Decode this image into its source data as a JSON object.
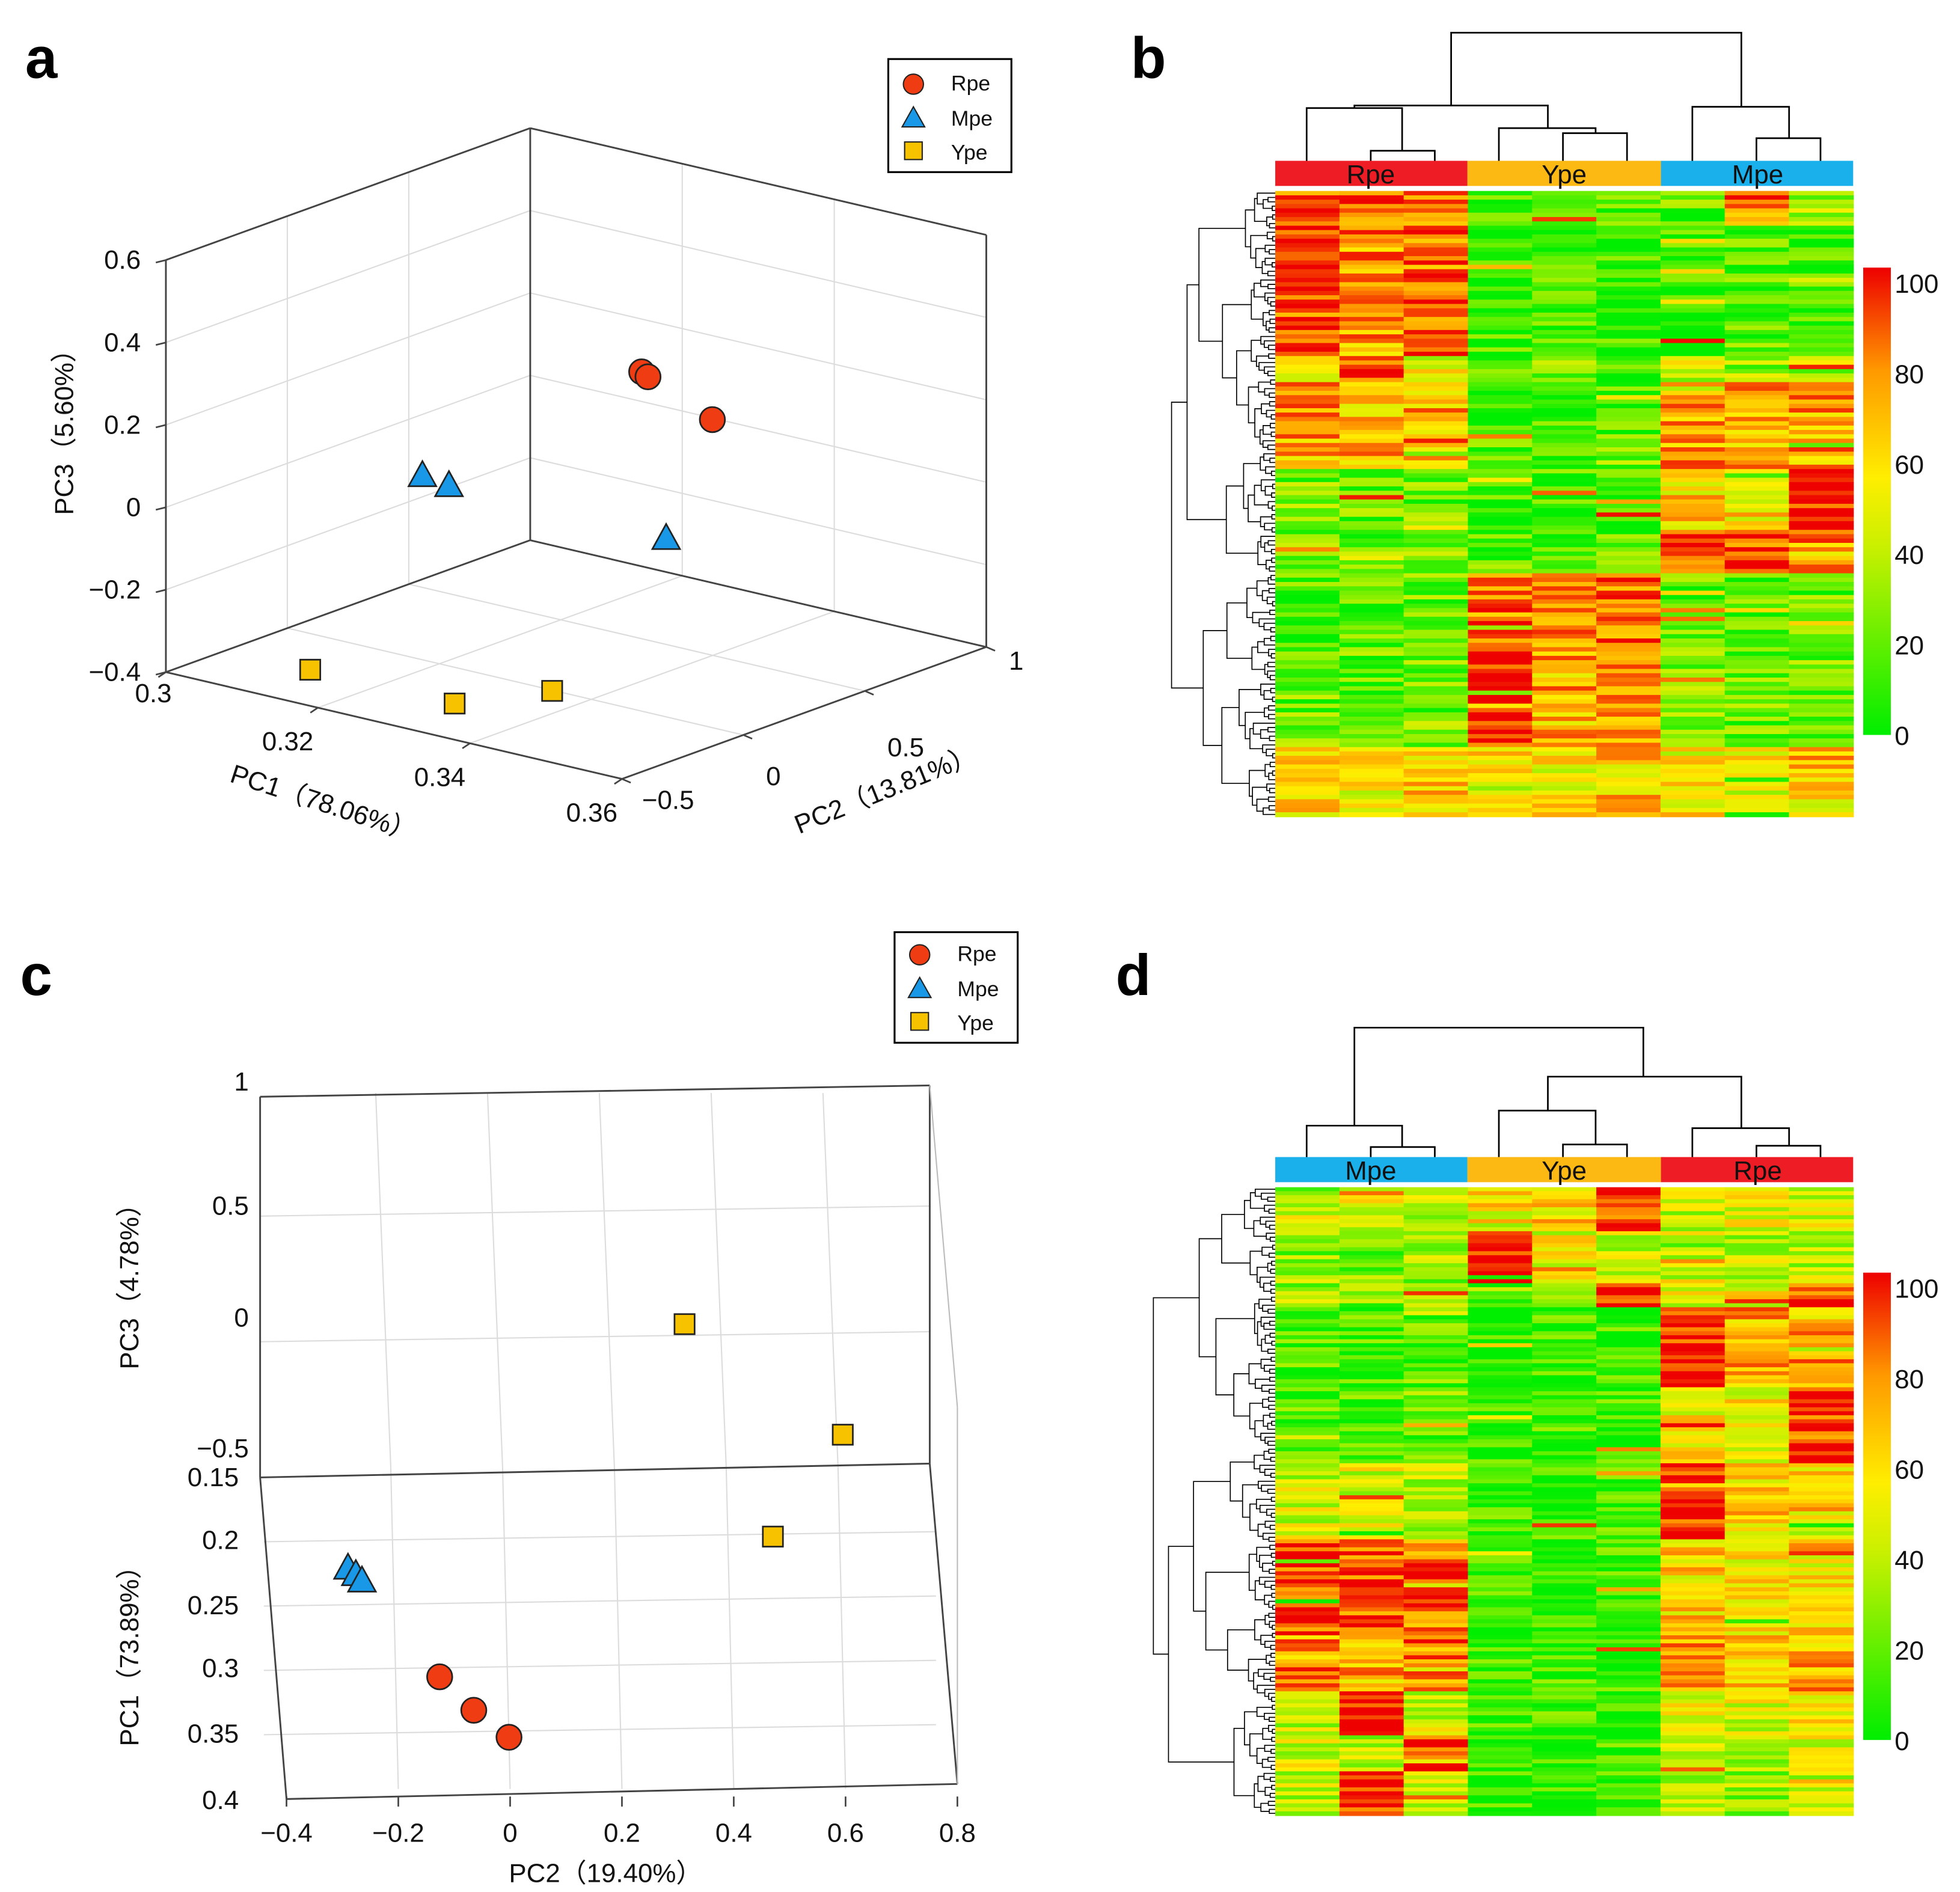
{
  "colors": {
    "Rpe": "#f03c12",
    "Mpe": "#1a98e8",
    "Ype": "#f7c200",
    "bar_Rpe": "#ee1c25",
    "bar_Ype": "#fdb913",
    "bar_Mpe": "#1ab0ec"
  },
  "legend": [
    "Rpe",
    "Mpe",
    "Ype"
  ],
  "chart_data": [
    {
      "panel": "a",
      "type": "scatter",
      "subtype": "3d",
      "xlabel": "PC1（78.06%）",
      "ylabel": "PC2（13.81%）",
      "zlabel": "PC3（5.60%）",
      "xlim": [
        0.3,
        0.36
      ],
      "ylim": [
        -0.5,
        1
      ],
      "zlim": [
        -0.4,
        0.6
      ],
      "xticks": [
        "0.3",
        "0.32",
        "0.34",
        "0.36"
      ],
      "yticks": [
        "−0.5",
        "0",
        "0.5",
        "1"
      ],
      "zticks": [
        "−0.4",
        "−0.2",
        "0",
        "0.2",
        "0.4",
        "0.6"
      ],
      "legend_position": "top-right",
      "series": [
        {
          "name": "Rpe",
          "marker": "circle",
          "points": [
            [
              0.3354,
              0.351,
              0.3
            ],
            [
              0.337,
              0.327,
              0.3
            ],
            [
              0.3425,
              0.42,
              0.2
            ]
          ]
        },
        {
          "name": "Mpe",
          "marker": "triangle",
          "points": [
            [
              0.3179,
              -0.004,
              0.05
            ],
            [
              0.3204,
              0.027,
              0.03
            ],
            [
              0.3376,
              0.383,
              -0.1
            ]
          ]
        },
        {
          "name": "Ype",
          "marker": "square",
          "points": [
            [
              0.311,
              -0.25,
              -0.4
            ],
            [
              0.33,
              -0.25,
              -0.4
            ],
            [
              0.335,
              -0.005,
              -0.4
            ]
          ]
        }
      ]
    },
    {
      "panel": "b",
      "type": "heatmap",
      "groups": [
        "Rpe",
        "Ype",
        "Mpe"
      ],
      "colorbar": {
        "range": [
          0,
          100
        ],
        "ticks": [
          "100",
          "80",
          "60",
          "40",
          "20",
          "0"
        ]
      },
      "row_blocks": [
        {
          "rows": 8,
          "values": [
            90,
            80,
            85,
            12,
            10,
            15,
            20,
            85,
            30
          ]
        },
        {
          "rows": 30,
          "values": [
            88,
            75,
            85,
            10,
            12,
            10,
            10,
            15,
            12
          ]
        },
        {
          "rows": 6,
          "values": [
            45,
            85,
            50,
            20,
            25,
            20,
            40,
            30,
            35
          ]
        },
        {
          "rows": 20,
          "values": [
            72,
            68,
            70,
            15,
            12,
            18,
            75,
            70,
            72
          ]
        },
        {
          "rows": 14,
          "values": [
            25,
            18,
            20,
            12,
            12,
            15,
            60,
            60,
            95
          ]
        },
        {
          "rows": 10,
          "values": [
            20,
            22,
            25,
            15,
            15,
            15,
            88,
            92,
            75
          ]
        },
        {
          "rows": 18,
          "values": [
            15,
            18,
            20,
            85,
            75,
            85,
            20,
            15,
            20
          ]
        },
        {
          "rows": 22,
          "values": [
            20,
            18,
            22,
            100,
            70,
            80,
            25,
            20,
            25
          ]
        },
        {
          "rows": 16,
          "values": [
            65,
            55,
            60,
            60,
            55,
            65,
            55,
            50,
            60
          ]
        }
      ]
    },
    {
      "panel": "c",
      "type": "scatter",
      "subtype": "3d-projection",
      "xlabel": "PC2（19.40%）",
      "ylabel_upper": "PC3（4.78%）",
      "ylabel_lower": "PC1（73.89%）",
      "xlim": [
        -0.4,
        0.8
      ],
      "ylim_upper": [
        -0.5,
        1
      ],
      "ylim_lower": [
        0.15,
        0.4
      ],
      "xticks": [
        "−0.4",
        "−0.2",
        "0",
        "0.2",
        "0.4",
        "0.6",
        "0.8"
      ],
      "yticks_upper": [
        "1",
        "0.5",
        "0",
        "−0.5"
      ],
      "yticks_lower": [
        "0.15",
        "0.2",
        "0.25",
        "0.3",
        "0.35",
        "0.4"
      ],
      "legend_position": "top-right",
      "series": [
        {
          "name": "Rpe",
          "marker": "circle",
          "panel": "lower",
          "points": [
            [
              -0.126,
              0.305
            ],
            [
              -0.065,
              0.331
            ],
            [
              -0.002,
              0.352
            ]
          ]
        },
        {
          "name": "Mpe",
          "marker": "triangle",
          "panel": "lower",
          "points": [
            [
              -0.29,
              0.22
            ],
            [
              -0.276,
              0.225
            ],
            [
              -0.265,
              0.23
            ]
          ]
        },
        {
          "name": "Ype",
          "marker": "square",
          "panel": "upper",
          "points": [
            [
              0.312,
              0.08
            ],
            [
              0.595,
              -0.36
            ]
          ]
        },
        {
          "name": "Ype",
          "marker": "square",
          "panel": "lower",
          "points": [
            [
              0.47,
              0.196
            ]
          ]
        }
      ]
    },
    {
      "panel": "d",
      "type": "heatmap",
      "groups": [
        "Mpe",
        "Ype",
        "Rpe"
      ],
      "colorbar": {
        "range": [
          0,
          100
        ],
        "ticks": [
          "100",
          "80",
          "60",
          "40",
          "20",
          "0"
        ]
      },
      "row_blocks": [
        {
          "rows": 11,
          "values": [
            45,
            50,
            40,
            55,
            60,
            95,
            40,
            50,
            45
          ]
        },
        {
          "rows": 13,
          "values": [
            30,
            25,
            30,
            100,
            50,
            45,
            45,
            40,
            40
          ]
        },
        {
          "rows": 6,
          "values": [
            30,
            25,
            30,
            20,
            30,
            95,
            45,
            40,
            95
          ]
        },
        {
          "rows": 20,
          "values": [
            15,
            12,
            15,
            10,
            10,
            10,
            100,
            70,
            70
          ]
        },
        {
          "rows": 19,
          "values": [
            20,
            15,
            20,
            10,
            10,
            10,
            55,
            55,
            95
          ]
        },
        {
          "rows": 19,
          "values": [
            40,
            45,
            40,
            10,
            10,
            10,
            95,
            60,
            60
          ]
        },
        {
          "rows": 24,
          "values": [
            92,
            88,
            85,
            12,
            10,
            10,
            60,
            55,
            60
          ]
        },
        {
          "rows": 14,
          "values": [
            75,
            70,
            80,
            10,
            10,
            10,
            70,
            65,
            70
          ]
        },
        {
          "rows": 11,
          "values": [
            40,
            100,
            40,
            10,
            10,
            10,
            50,
            45,
            50
          ]
        },
        {
          "rows": 9,
          "values": [
            45,
            35,
            100,
            10,
            10,
            10,
            45,
            40,
            45
          ]
        },
        {
          "rows": 11,
          "values": [
            40,
            100,
            45,
            10,
            10,
            10,
            35,
            30,
            35
          ]
        }
      ]
    }
  ],
  "panel_labels": {
    "a": "a",
    "b": "b",
    "c": "c",
    "d": "d"
  }
}
